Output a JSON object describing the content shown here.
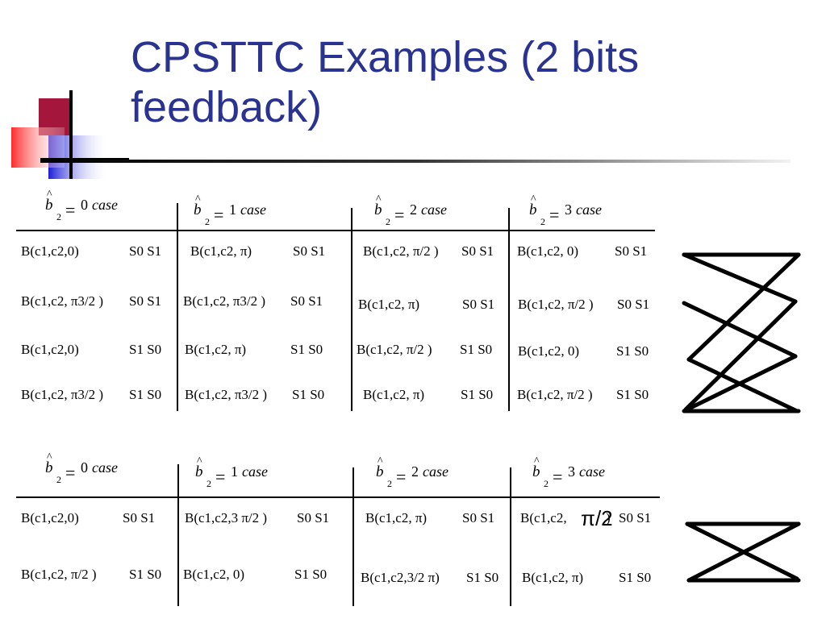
{
  "title": "CPSTTC Examples (2 bits feedback)",
  "header_case": "case",
  "header_symbol": "b",
  "header_sub": "2",
  "header_eq": "=",
  "table1": {
    "headers": [
      "0",
      "1",
      "2",
      "3"
    ],
    "rows": [
      [
        [
          "B(c1,c2,0)",
          "S0 S1"
        ],
        [
          "B(c1,c2, π)",
          "S0 S1"
        ],
        [
          "B(c1,c2, π/2 )",
          "S0 S1"
        ],
        [
          "B(c1,c2, 0)",
          "S0 S1"
        ]
      ],
      [
        [
          "B(c1,c2, π3/2 )",
          "S0 S1"
        ],
        [
          "B(c1,c2, π3/2 )",
          "S0 S1"
        ],
        [
          "B(c1,c2, π)",
          "S0 S1"
        ],
        [
          "B(c1,c2, π/2 )",
          "S0 S1"
        ]
      ],
      [
        [
          "B(c1,c2,0)",
          "S1 S0"
        ],
        [
          "B(c1,c2, π)",
          "S1 S0"
        ],
        [
          "B(c1,c2, π/2 )",
          "S1 S0"
        ],
        [
          "B(c1,c2, 0)",
          "S1 S0"
        ]
      ],
      [
        [
          "B(c1,c2, π3/2 )",
          "S1 S0"
        ],
        [
          "B(c1,c2, π3/2 )",
          "S1 S0"
        ],
        [
          "B(c1,c2, π)",
          "S1 S0"
        ],
        [
          "B(c1,c2, π/2 )",
          "S1 S0"
        ]
      ]
    ]
  },
  "table2": {
    "headers": [
      "0",
      "1",
      "2",
      "3"
    ],
    "rows": [
      [
        [
          "B(c1,c2,0)",
          "S0 S1"
        ],
        [
          "B(c1,c2,3 π/2 )",
          "S0 S1"
        ],
        [
          "B(c1,c2, π)",
          "S0 S1"
        ],
        [
          "B(c1,c2,",
          "π/2",
          ")",
          "S0 S1"
        ]
      ],
      [
        [
          "B(c1,c2, π/2 )",
          "S1 S0"
        ],
        [
          "B(c1,c2, 0)",
          "S1 S0"
        ],
        [
          "B(c1,c2,3/2 π)",
          "S1 S0"
        ],
        [
          "B(c1,c2, π)",
          "S1 S0"
        ]
      ]
    ]
  },
  "colors": {
    "title": "#2a3390",
    "logo_red": "#a5163c",
    "logo_blue": "#2b2bd6"
  }
}
